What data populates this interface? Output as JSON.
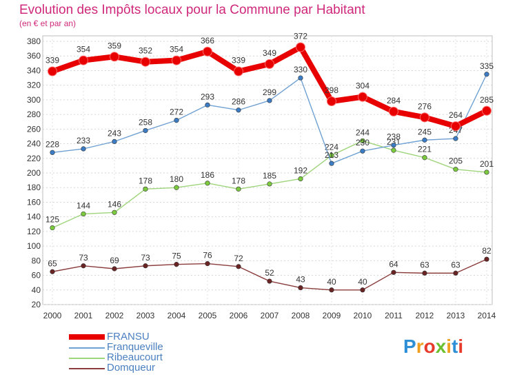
{
  "title": "Evolution des Impôts locaux pour la Commune par Habitant",
  "subtitle": "(en € et par an)",
  "chart_data": {
    "type": "line",
    "x": [
      2000,
      2001,
      2002,
      2003,
      2004,
      2005,
      2006,
      2007,
      2008,
      2009,
      2010,
      2011,
      2012,
      2013,
      2014
    ],
    "xticks": [
      "2000",
      "2001",
      "2002",
      "2003",
      "2004",
      "2005",
      "2006",
      "2007",
      "2008",
      "2009",
      "2010",
      "2011",
      "2012",
      "2013",
      "2014"
    ],
    "ylim": [
      20,
      380
    ],
    "yticks": [
      "20",
      "40",
      "60",
      "80",
      "100",
      "120",
      "140",
      "160",
      "180",
      "200",
      "220",
      "240",
      "260",
      "280",
      "300",
      "320",
      "340",
      "360",
      "380"
    ],
    "grid": true,
    "legend_placement": "bottom-left",
    "series": [
      {
        "name": "FRANSU",
        "color": "#e80000",
        "thick": true,
        "values": [
          339,
          354,
          359,
          352,
          354,
          366,
          339,
          349,
          372,
          298,
          304,
          284,
          276,
          264,
          285
        ]
      },
      {
        "name": "Franqueville",
        "color": "#6fa0d2",
        "marker": "#3b7cc4",
        "values": [
          228,
          233,
          243,
          258,
          272,
          293,
          286,
          299,
          330,
          213,
          230,
          238,
          245,
          247,
          335
        ]
      },
      {
        "name": "Ribeaucourt",
        "color": "#9ed47a",
        "marker": "#7ccb3e",
        "values": [
          125,
          144,
          146,
          178,
          180,
          186,
          178,
          185,
          192,
          224,
          244,
          231,
          221,
          205,
          201
        ]
      },
      {
        "name": "Domqueur",
        "color": "#8a3b3b",
        "marker": "#6b2424",
        "values": [
          65,
          73,
          69,
          73,
          75,
          76,
          72,
          52,
          43,
          40,
          40,
          64,
          63,
          63,
          82
        ]
      }
    ]
  },
  "legend": {
    "items": [
      "FRANSU",
      "Franqueville",
      "Ribeaucourt",
      "Domqueur"
    ]
  },
  "logo": {
    "letters": [
      "P",
      "r",
      "o",
      "x",
      "i",
      "t",
      "i"
    ],
    "colors": [
      "#2e8fd6",
      "#f0a020",
      "#e83a2a",
      "#6cc030",
      "#f0a020",
      "#2e8fd6",
      "#e83a2a"
    ]
  }
}
